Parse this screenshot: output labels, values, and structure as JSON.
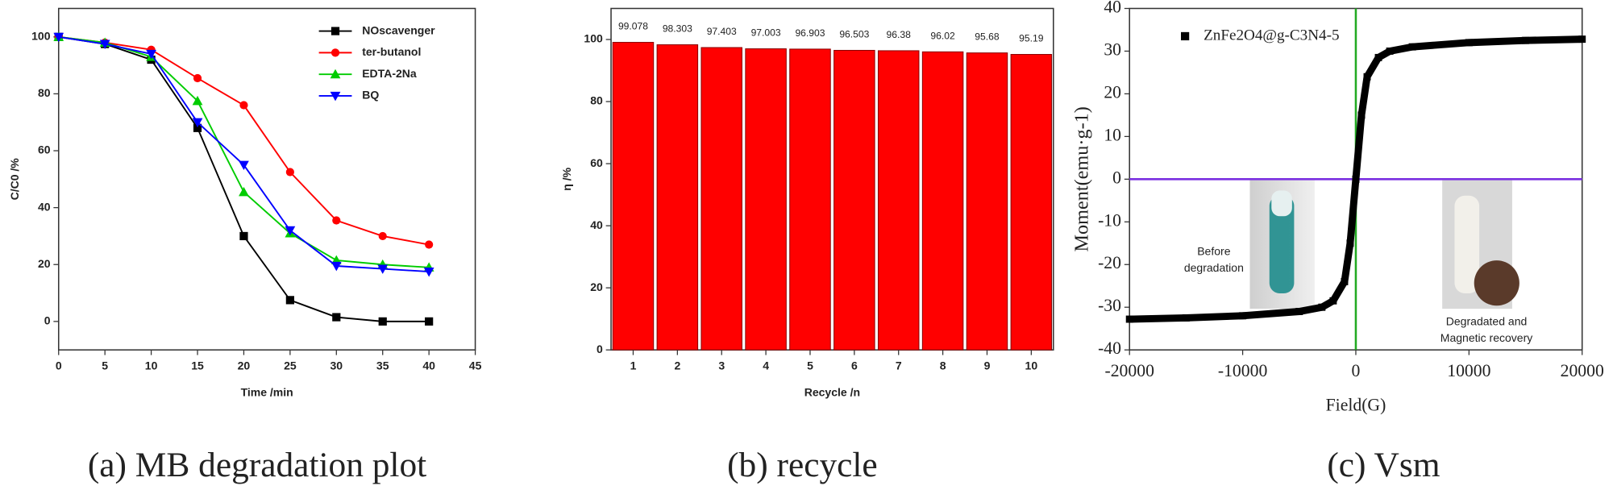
{
  "chart_data": [
    {
      "type": "line",
      "caption": "(a)  MB degradation plot",
      "x_label": "Time /min",
      "y_label": "C/C0 /%",
      "x": [
        0,
        5,
        10,
        15,
        20,
        25,
        30,
        35,
        40
      ],
      "xlim": [
        0,
        45
      ],
      "xticks": [
        0,
        5,
        10,
        15,
        20,
        25,
        30,
        35,
        40,
        45
      ],
      "ylim": [
        -10,
        110
      ],
      "yticks": [
        0,
        20,
        40,
        60,
        80,
        100
      ],
      "legend": "upper-right",
      "series": [
        {
          "name": "NOscavenger",
          "color": "#000000",
          "marker": "square",
          "values": [
            100,
            97.5,
            92,
            68,
            30,
            7.5,
            1.5,
            0,
            0
          ]
        },
        {
          "name": "ter-butanol",
          "color": "#ff0000",
          "marker": "circle",
          "values": [
            100,
            98,
            95.5,
            85.5,
            76,
            52.5,
            35.5,
            30,
            27
          ]
        },
        {
          "name": "EDTA-2Na",
          "color": "#00cc00",
          "marker": "triangle-up",
          "values": [
            100,
            98,
            93,
            77.5,
            45.5,
            31,
            21.5,
            20,
            19
          ]
        },
        {
          "name": "BQ",
          "color": "#0000ff",
          "marker": "triangle-down",
          "values": [
            100,
            97.5,
            94,
            70,
            55,
            32,
            19.5,
            18.5,
            17.5
          ]
        }
      ]
    },
    {
      "type": "bar",
      "caption": "(b) recycle",
      "x_label": "Recycle /n",
      "y_label": "η /%",
      "categories": [
        "1",
        "2",
        "3",
        "4",
        "5",
        "6",
        "7",
        "8",
        "9",
        "10"
      ],
      "values": [
        99.078,
        98.303,
        97.403,
        97.003,
        96.903,
        96.503,
        96.38,
        96.02,
        95.68,
        95.19
      ],
      "color": "#ff0000",
      "ylim": [
        0,
        110
      ],
      "yticks": [
        0,
        20,
        40,
        60,
        80,
        100
      ]
    },
    {
      "type": "scatter",
      "caption": "(c) Vsm",
      "x_label": "Field(G)",
      "y_label": "Moment(emu·g-1)",
      "xlim": [
        -20000,
        20000
      ],
      "xticks": [
        -20000,
        -10000,
        0,
        10000,
        20000
      ],
      "ylim": [
        -40,
        40
      ],
      "yticks": [
        -40,
        -30,
        -20,
        -10,
        0,
        10,
        20,
        30,
        40
      ],
      "legend": "upper-left",
      "zero_line_colors": {
        "x": "#22aa22",
        "y": "#7a2fe0"
      },
      "annotations": [
        [
          "Before",
          "degradation"
        ],
        [
          "Degradated and",
          "Magnetic recovery"
        ]
      ],
      "series": [
        {
          "name": "ZnFe2O4@g-C3N4-5",
          "color": "#000000",
          "x": [
            -20000,
            -15000,
            -10000,
            -5000,
            -3000,
            -2000,
            -1000,
            -500,
            0,
            500,
            1000,
            2000,
            3000,
            5000,
            10000,
            15000,
            20000
          ],
          "values": [
            -32.8,
            -32.5,
            -32,
            -31,
            -30,
            -28.5,
            -24,
            -15,
            0,
            15,
            24,
            28.5,
            30,
            31,
            32,
            32.5,
            32.8
          ]
        }
      ]
    }
  ]
}
